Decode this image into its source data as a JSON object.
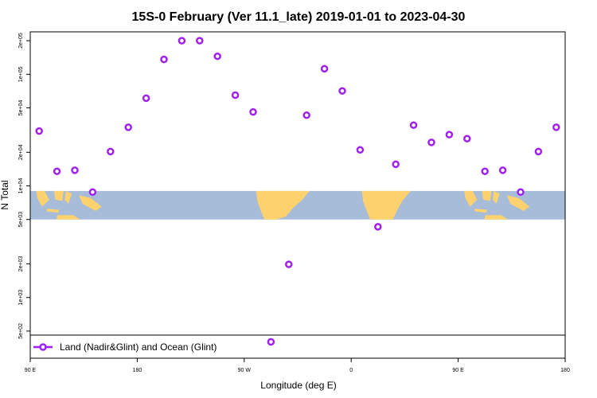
{
  "chart_data": {
    "type": "scatter",
    "title": "15S-0 February (Ver 11.1_late)   2019-01-01 to 2023-04-30",
    "xlabel": "Longitude (deg E)",
    "ylabel": "N Total",
    "x_ticks": [
      {
        "value": 90,
        "label": "90 E"
      },
      {
        "value": 180,
        "label": "180"
      },
      {
        "value": 270,
        "label": "90 W"
      },
      {
        "value": 360,
        "label": "0"
      },
      {
        "value": 450,
        "label": "90 E"
      },
      {
        "value": 540,
        "label": "180"
      }
    ],
    "xlim": [
      90,
      540
    ],
    "y_scale": "log",
    "y_ticks": [
      {
        "value": 500,
        "label": "5e+02"
      },
      {
        "value": 1000,
        "label": "1e+03"
      },
      {
        "value": 2000,
        "label": "2e+03"
      },
      {
        "value": 5000,
        "label": "5e+03"
      },
      {
        "value": 10000,
        "label": "1e+04"
      },
      {
        "value": 20000,
        "label": "2e+04"
      },
      {
        "value": 50000,
        "label": "5e+04"
      },
      {
        "value": 100000,
        "label": "1e+05"
      },
      {
        "value": 200000,
        "label": "2e+05"
      }
    ],
    "ylim": [
      460,
      240000
    ],
    "map_band": {
      "y_top": 9000,
      "y_bottom": 5000
    },
    "series": [
      {
        "name": "Land (Nadir&Glint) and Ocean (Glint)",
        "color": "#a020f0",
        "marker": "open-circle",
        "points": [
          {
            "x": 97.5,
            "y": 31000
          },
          {
            "x": 112.5,
            "y": 13500
          },
          {
            "x": 127.5,
            "y": 13800
          },
          {
            "x": 142.5,
            "y": 8800
          },
          {
            "x": 157.5,
            "y": 20300
          },
          {
            "x": 172.5,
            "y": 33500
          },
          {
            "x": 187.5,
            "y": 61000
          },
          {
            "x": 202.5,
            "y": 136000
          },
          {
            "x": 217.5,
            "y": 200000
          },
          {
            "x": 232.5,
            "y": 200000
          },
          {
            "x": 247.5,
            "y": 145000
          },
          {
            "x": 262.5,
            "y": 65000
          },
          {
            "x": 277.5,
            "y": 46000
          },
          {
            "x": 292.5,
            "y": 400
          },
          {
            "x": 307.5,
            "y": 1980
          },
          {
            "x": 322.5,
            "y": 43000
          },
          {
            "x": 337.5,
            "y": 112000
          },
          {
            "x": 352.5,
            "y": 71000
          },
          {
            "x": 367.5,
            "y": 21000
          },
          {
            "x": 382.5,
            "y": 4300
          },
          {
            "x": 397.5,
            "y": 15600
          },
          {
            "x": 412.5,
            "y": 35000
          },
          {
            "x": 427.5,
            "y": 24500
          },
          {
            "x": 442.5,
            "y": 28800
          },
          {
            "x": 457.5,
            "y": 26500
          },
          {
            "x": 472.5,
            "y": 13500
          },
          {
            "x": 487.5,
            "y": 13800
          },
          {
            "x": 502.5,
            "y": 8800
          },
          {
            "x": 517.5,
            "y": 20300
          },
          {
            "x": 532.5,
            "y": 33500
          }
        ]
      }
    ],
    "legend": {
      "placement": "bottom-left",
      "label": "Land (Nadir&Glint) and Ocean (Glint)"
    },
    "grid": false
  },
  "colors": {
    "ocean": "#a7bcd9",
    "land": "#fed16f",
    "marker": "#a020f0",
    "axis": "#000000"
  }
}
